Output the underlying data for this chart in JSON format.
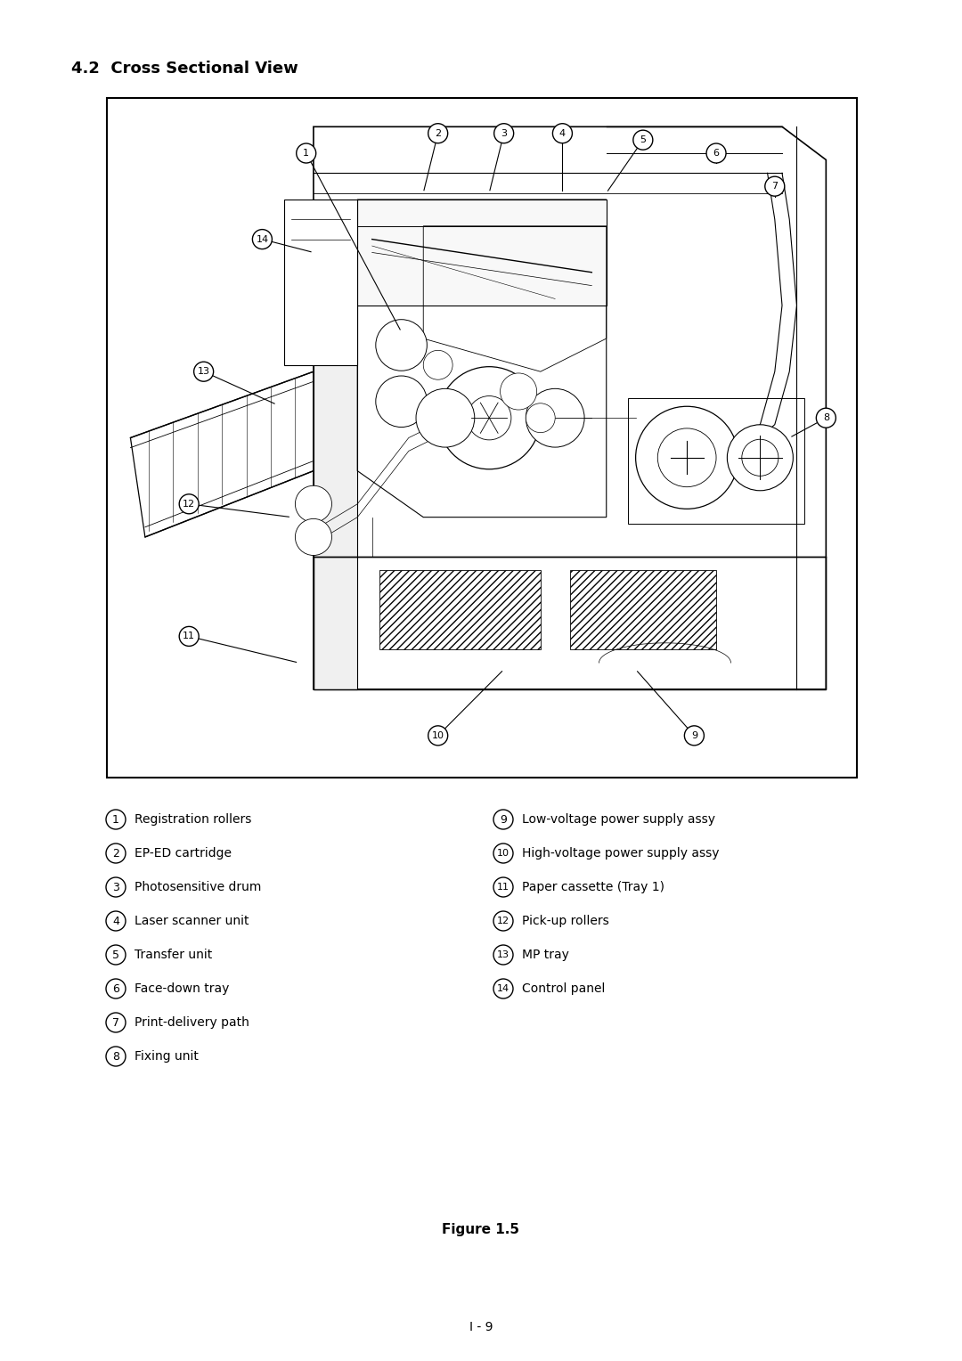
{
  "title": "4.2  Cross Sectional View",
  "figure_caption": "Figure 1.5",
  "page_number": "I - 9",
  "background_color": "#ffffff",
  "title_fontsize": 12,
  "text_color": "#000000",
  "legend_items_left": [
    {
      "num": "1",
      "text": "Registration rollers"
    },
    {
      "num": "2",
      "text": "EP-ED cartridge"
    },
    {
      "num": "3",
      "text": "Photosensitive drum"
    },
    {
      "num": "4",
      "text": "Laser scanner unit"
    },
    {
      "num": "5",
      "text": "Transfer unit"
    },
    {
      "num": "6",
      "text": "Face-down tray"
    },
    {
      "num": "7",
      "text": "Print-delivery path"
    },
    {
      "num": "8",
      "text": "Fixing unit"
    }
  ],
  "legend_items_right": [
    {
      "num": "9",
      "text": "Low-voltage power supply assy"
    },
    {
      "num": "10",
      "text": "High-voltage power supply assy"
    },
    {
      "num": "11",
      "text": "Paper cassette (Tray 1)"
    },
    {
      "num": "12",
      "text": "Pick-up rollers"
    },
    {
      "num": "13",
      "text": "MP tray"
    },
    {
      "num": "14",
      "text": "Control panel"
    }
  ]
}
